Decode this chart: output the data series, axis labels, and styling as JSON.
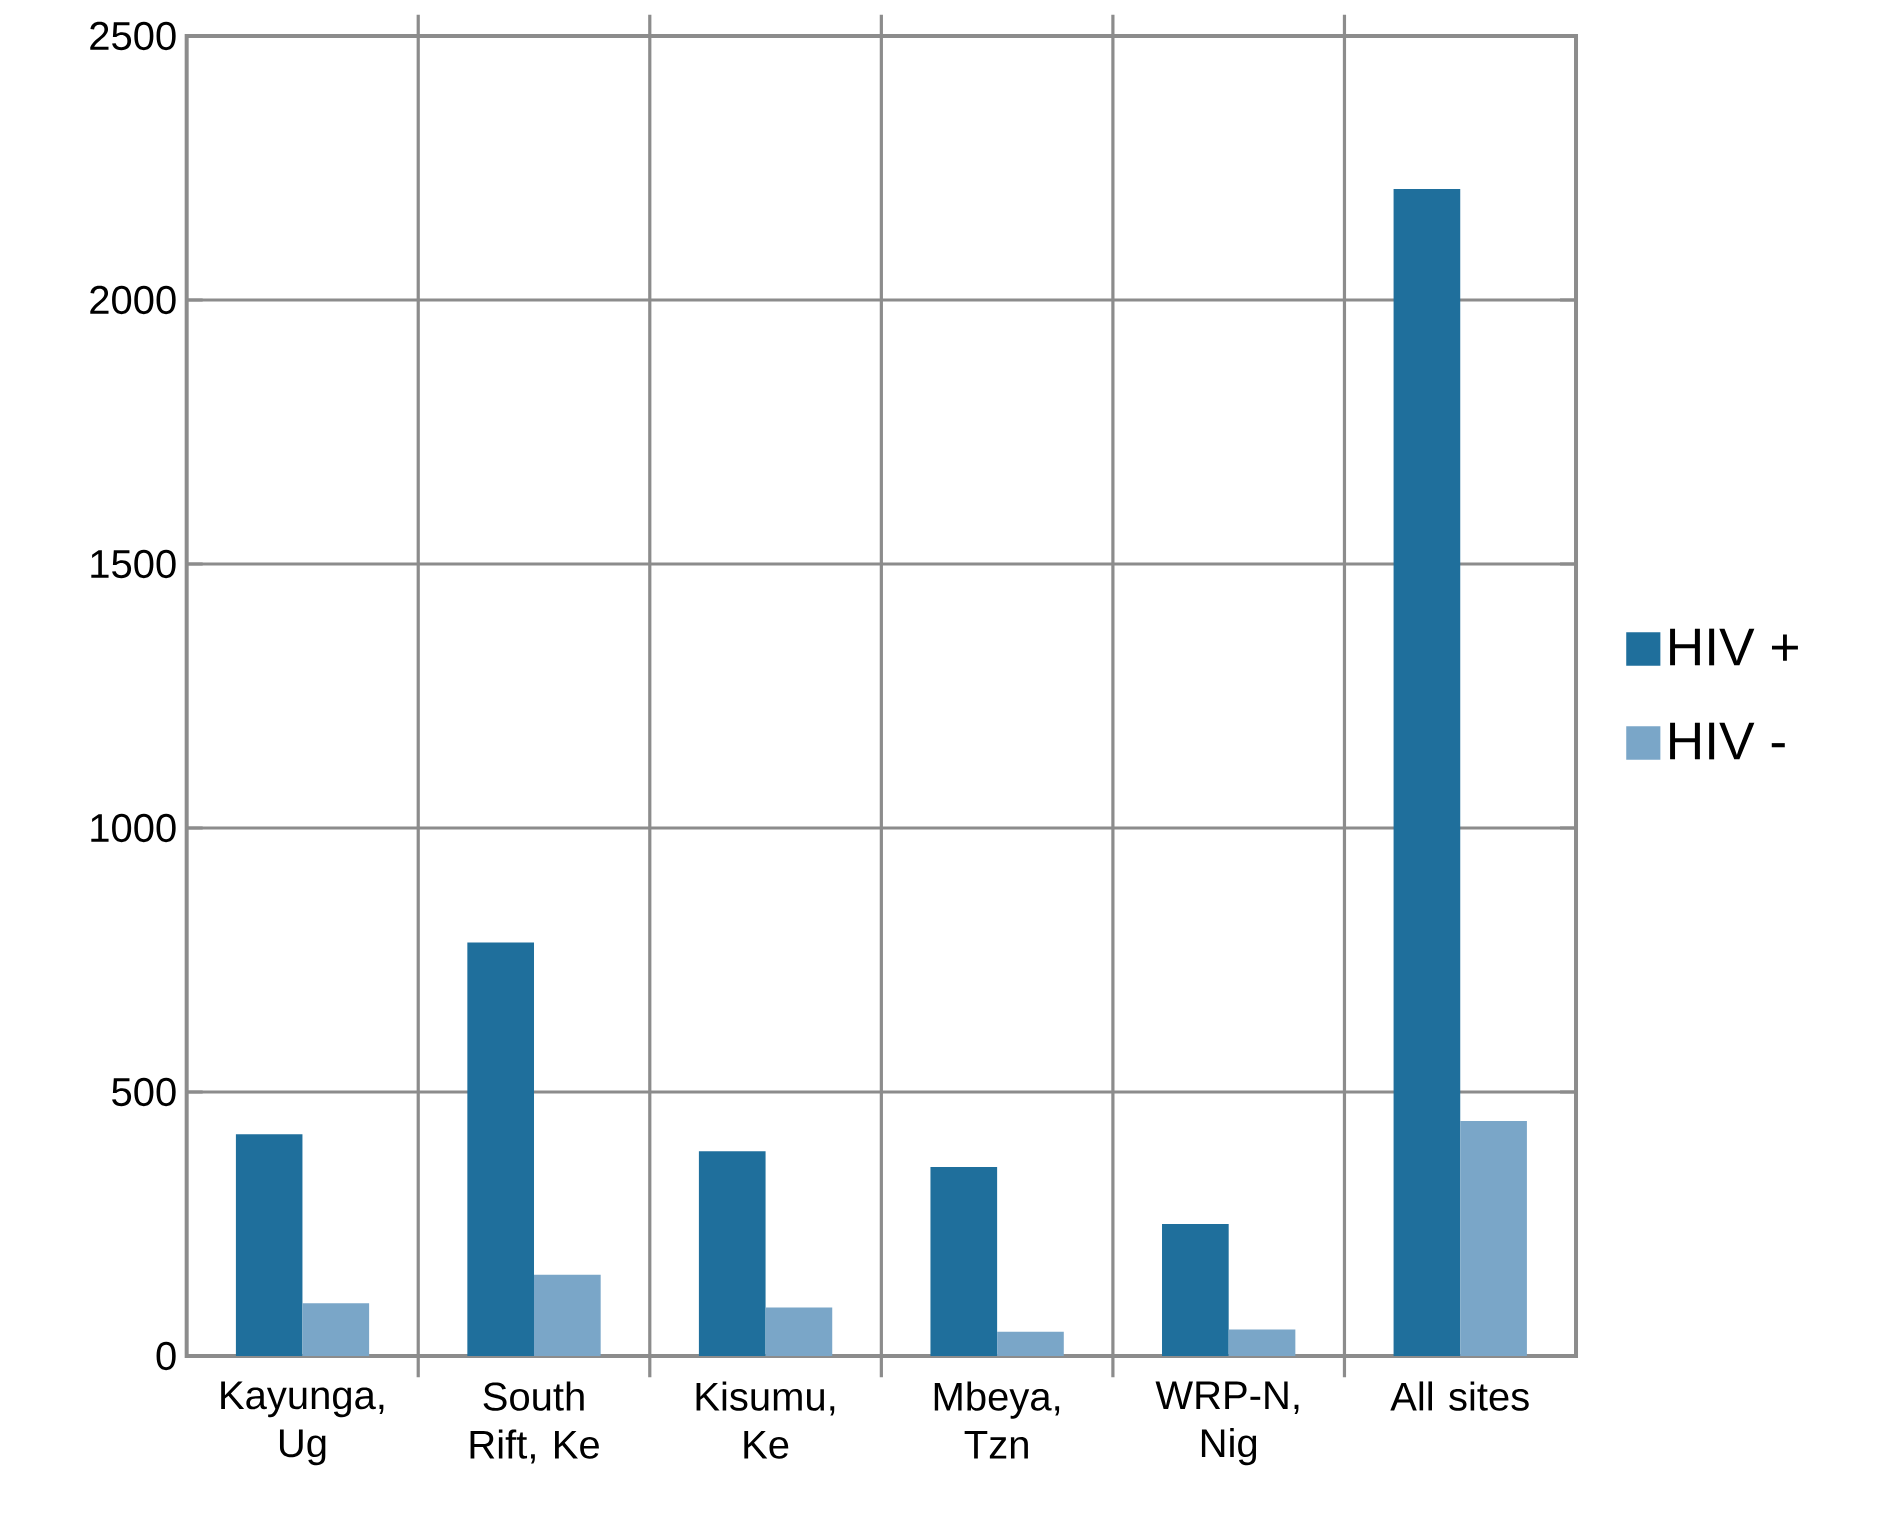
{
  "chart_data": {
    "type": "bar",
    "categories": [
      "Kayunga, Ug",
      "South Rift, Ke",
      "Kisumu, Ke",
      "Mbeya, Tzn",
      "WRP-N, Nig",
      "All sites"
    ],
    "series": [
      {
        "name": "HIV +",
        "color": "#1f6f9c",
        "values": [
          420,
          783,
          388,
          358,
          250,
          2210
        ]
      },
      {
        "name": "HIV -",
        "color": "#7aa6c8",
        "values": [
          100,
          154,
          92,
          46,
          50,
          445
        ]
      }
    ],
    "ylim": [
      0,
      2500
    ],
    "yticks": [
      0,
      500,
      1000,
      1500,
      2000,
      2500
    ],
    "grid": true,
    "legend": "right"
  }
}
